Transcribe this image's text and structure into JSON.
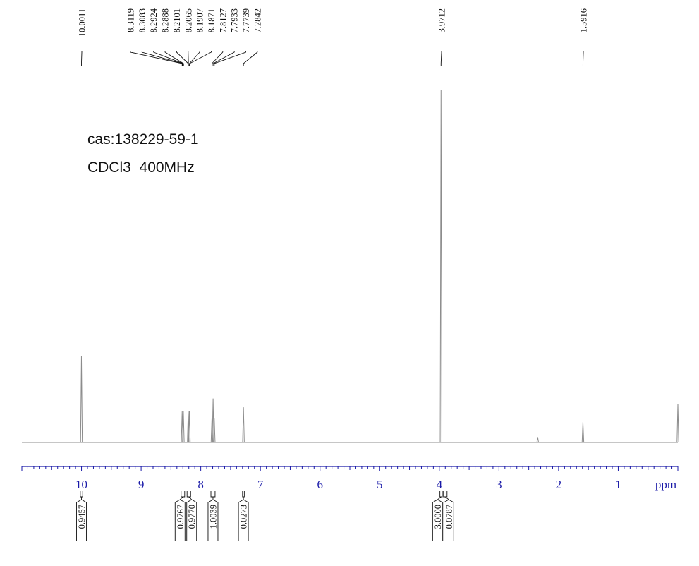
{
  "annotations": {
    "cas": "cas:138229-59-1",
    "conditions": "CDCl3  400MHz"
  },
  "chart_data": {
    "type": "line",
    "title": "",
    "xlabel": "ppm",
    "ylabel": "",
    "x_reversed": true,
    "xlim": [
      11.0,
      0.0
    ],
    "x_ticks": [
      10,
      9,
      8,
      7,
      6,
      5,
      4,
      3,
      2,
      1
    ],
    "line_color": "#8c8c8c",
    "axis_color": "#1a1aa8",
    "peak_labels": [
      "10.0011",
      "8.3119",
      "8.3083",
      "8.2924",
      "8.2888",
      "8.2101",
      "8.2065",
      "8.1907",
      "8.1871",
      "7.8127",
      "7.7933",
      "7.7739",
      "7.2842",
      "3.9712",
      "1.5916"
    ],
    "peak_heights": [
      {
        "ppm": 10.0011,
        "height": 0.245
      },
      {
        "ppm": 8.3119,
        "height": 0.09
      },
      {
        "ppm": 8.2924,
        "height": 0.09
      },
      {
        "ppm": 8.2101,
        "height": 0.09
      },
      {
        "ppm": 8.1907,
        "height": 0.09
      },
      {
        "ppm": 7.8127,
        "height": 0.07
      },
      {
        "ppm": 7.7933,
        "height": 0.125
      },
      {
        "ppm": 7.7739,
        "height": 0.07
      },
      {
        "ppm": 7.2842,
        "height": 0.1
      },
      {
        "ppm": 3.9712,
        "height": 1.0
      },
      {
        "ppm": 2.35,
        "height": 0.015
      },
      {
        "ppm": 1.5916,
        "height": 0.058
      },
      {
        "ppm": 0.0,
        "height": 0.11
      }
    ],
    "integrals": [
      {
        "value": "0.9457",
        "range": [
          10.02,
          9.98
        ]
      },
      {
        "value": "0.9767",
        "range": [
          8.33,
          8.27
        ]
      },
      {
        "value": "0.9770",
        "range": [
          8.23,
          8.17
        ]
      },
      {
        "value": "1.0039",
        "range": [
          7.83,
          7.76
        ]
      },
      {
        "value": "0.0273",
        "range": [
          7.3,
          7.27
        ]
      },
      {
        "value": "3.0000",
        "range": [
          3.99,
          3.95
        ]
      },
      {
        "value": "0.0787",
        "range": [
          3.93,
          3.87
        ]
      }
    ]
  }
}
